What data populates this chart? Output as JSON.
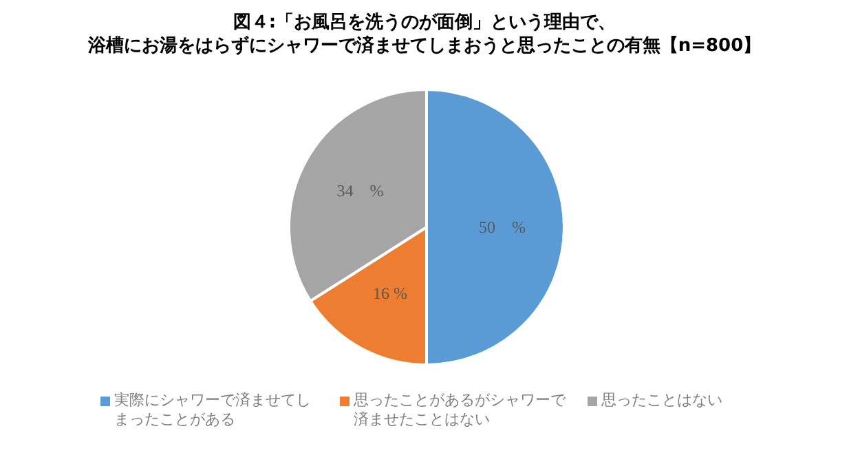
{
  "chart_data": {
    "type": "pie",
    "title": "図４:「お風呂を洗うのが面倒」という理由で、",
    "subtitle": "浴槽にお湯をはらずにシャワーで済ませてしまおうと思ったことの有無【n=800】",
    "categories": [
      "実際にシャワーで済ませてしまったことがある",
      "思ったことがあるがシャワーで済ませたことはない",
      "思ったことはない"
    ],
    "values": [
      50,
      16,
      34
    ],
    "colors": [
      "#5b9bd5",
      "#ed7d31",
      "#a5a5a5"
    ],
    "value_labels": [
      "50　%",
      "16 %",
      "34　%"
    ],
    "legend": "bottom"
  }
}
